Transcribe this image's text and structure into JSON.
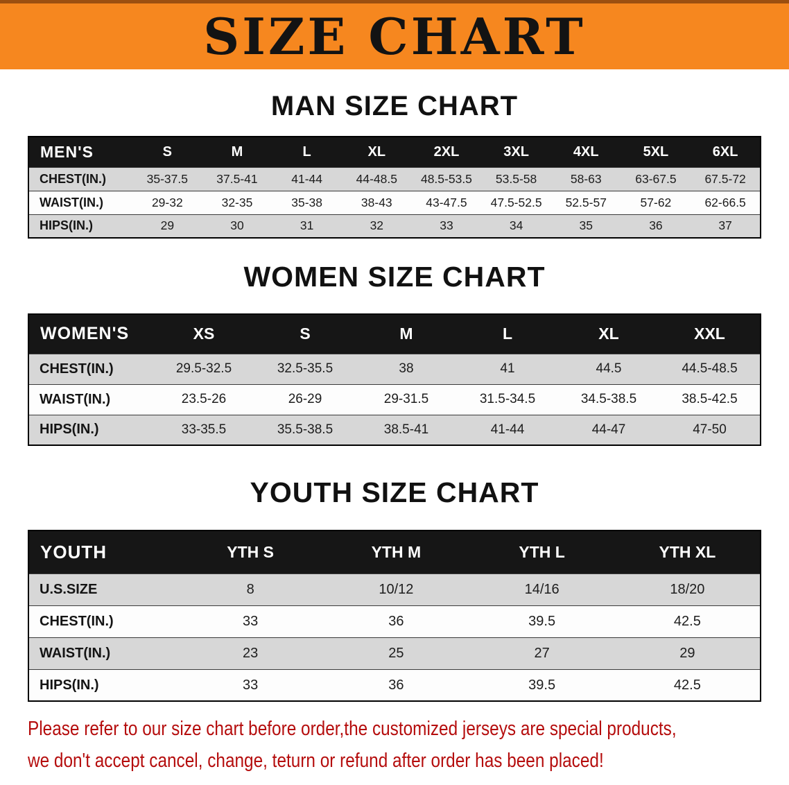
{
  "banner": {
    "title": "SIZE CHART"
  },
  "colors": {
    "banner_bg": "#f6871f",
    "header_bg": "#161616",
    "stripe": "#d7d7d7",
    "footer_text": "#b50d0d"
  },
  "sections": [
    {
      "id": "men",
      "heading": "MAN SIZE CHART",
      "table": {
        "corner_label": "MEN'S",
        "columns": [
          "S",
          "M",
          "L",
          "XL",
          "2XL",
          "3XL",
          "4XL",
          "5XL",
          "6XL"
        ],
        "rows": [
          {
            "label": "CHEST(IN.)",
            "values": [
              "35-37.5",
              "37.5-41",
              "41-44",
              "44-48.5",
              "48.5-53.5",
              "53.5-58",
              "58-63",
              "63-67.5",
              "67.5-72"
            ]
          },
          {
            "label": "WAIST(IN.)",
            "values": [
              "29-32",
              "32-35",
              "35-38",
              "38-43",
              "43-47.5",
              "47.5-52.5",
              "52.5-57",
              "57-62",
              "62-66.5"
            ]
          },
          {
            "label": "HIPS(IN.)",
            "values": [
              "29",
              "30",
              "31",
              "32",
              "33",
              "34",
              "35",
              "36",
              "37"
            ]
          }
        ]
      }
    },
    {
      "id": "women",
      "heading": "WOMEN SIZE CHART",
      "table": {
        "corner_label": "WOMEN'S",
        "columns": [
          "XS",
          "S",
          "M",
          "L",
          "XL",
          "XXL"
        ],
        "rows": [
          {
            "label": "CHEST(IN.)",
            "values": [
              "29.5-32.5",
              "32.5-35.5",
              "38",
              "41",
              "44.5",
              "44.5-48.5"
            ]
          },
          {
            "label": "WAIST(IN.)",
            "values": [
              "23.5-26",
              "26-29",
              "29-31.5",
              "31.5-34.5",
              "34.5-38.5",
              "38.5-42.5"
            ]
          },
          {
            "label": "HIPS(IN.)",
            "values": [
              "33-35.5",
              "35.5-38.5",
              "38.5-41",
              "41-44",
              "44-47",
              "47-50"
            ]
          }
        ]
      }
    },
    {
      "id": "youth",
      "heading": "YOUTH SIZE CHART",
      "table": {
        "corner_label": "YOUTH",
        "columns": [
          "YTH S",
          "YTH M",
          "YTH L",
          "YTH XL"
        ],
        "rows": [
          {
            "label": "U.S.SIZE",
            "values": [
              "8",
              "10/12",
              "14/16",
              "18/20"
            ]
          },
          {
            "label": "CHEST(IN.)",
            "values": [
              "33",
              "36",
              "39.5",
              "42.5"
            ]
          },
          {
            "label": "WAIST(IN.)",
            "values": [
              "23",
              "25",
              "27",
              "29"
            ]
          },
          {
            "label": "HIPS(IN.)",
            "values": [
              "33",
              "36",
              "39.5",
              "42.5"
            ]
          }
        ]
      }
    }
  ],
  "footer": {
    "line1": "Please refer to our size chart before order,the customized jerseys are special products,",
    "line2": "we don't accept cancel, change, teturn or refund after order has been placed!"
  }
}
